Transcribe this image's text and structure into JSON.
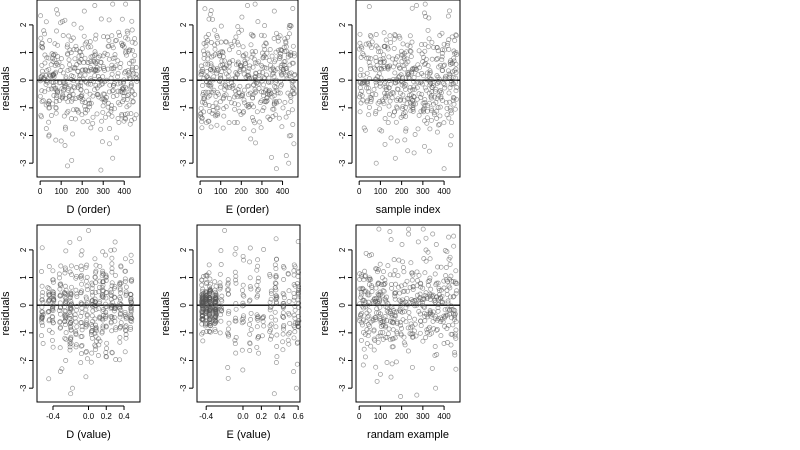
{
  "chart_data": [
    {
      "type": "scatter",
      "xlabel": "D (order)",
      "ylabel": "residuals",
      "xlim": [
        -15,
        475
      ],
      "ylim": [
        -3.5,
        2.9
      ],
      "xticks": [
        0,
        100,
        200,
        300,
        400
      ],
      "yticks": [
        -3,
        -2,
        -1,
        0,
        1,
        2
      ],
      "hline": 0,
      "grid": false,
      "n_points": 460,
      "seed": 11,
      "x_distribution": "order",
      "shape": "uniform",
      "points": [
        {
          "x": 130,
          "y": -3.1
        },
        {
          "x": 150,
          "y": -2.9
        },
        {
          "x": 260,
          "y": 2.7
        },
        {
          "x": 210,
          "y": 2.5
        },
        {
          "x": 100,
          "y": -2.2
        },
        {
          "x": 330,
          "y": -2.3
        },
        {
          "x": 395,
          "y": 1.3
        },
        {
          "x": 400,
          "y": 1.2
        },
        {
          "x": 120,
          "y": -1.7
        }
      ]
    },
    {
      "type": "scatter",
      "xlabel": "E (order)",
      "ylabel": "residuals",
      "xlim": [
        -15,
        475
      ],
      "ylim": [
        -3.5,
        2.9
      ],
      "xticks": [
        0,
        100,
        200,
        300,
        400
      ],
      "yticks": [
        -3,
        -2,
        -1,
        0,
        1,
        2
      ],
      "hline": 0,
      "grid": false,
      "n_points": 460,
      "seed": 23,
      "x_distribution": "order",
      "shape": "uniform",
      "points": [
        {
          "x": 230,
          "y": 2.7
        },
        {
          "x": 60,
          "y": 2.2
        },
        {
          "x": 360,
          "y": 2.5
        },
        {
          "x": 370,
          "y": -3.2
        },
        {
          "x": 430,
          "y": -3.0
        },
        {
          "x": 455,
          "y": -2.3
        },
        {
          "x": 440,
          "y": -2.0
        },
        {
          "x": 450,
          "y": -1.6
        }
      ]
    },
    {
      "type": "scatter",
      "xlabel": "sample index",
      "ylabel": "residuals",
      "xlim": [
        -15,
        475
      ],
      "ylim": [
        -3.5,
        2.9
      ],
      "xticks": [
        0,
        100,
        200,
        300,
        400
      ],
      "yticks": [
        -3,
        -2,
        -1,
        0,
        1,
        2
      ],
      "hline": 0,
      "grid": false,
      "n_points": 460,
      "seed": 37,
      "x_distribution": "order",
      "shape": "uniform",
      "points": [
        {
          "x": 80,
          "y": -3.0
        },
        {
          "x": 400,
          "y": -3.2
        },
        {
          "x": 270,
          "y": 2.7
        },
        {
          "x": 250,
          "y": 2.6
        },
        {
          "x": 180,
          "y": -2.2
        },
        {
          "x": 310,
          "y": 1.3
        },
        {
          "x": 400,
          "y": 1.3
        }
      ]
    },
    {
      "type": "scatter",
      "xlabel": "D (value)",
      "ylabel": "residuals",
      "xlim": [
        -0.58,
        0.58
      ],
      "ylim": [
        -3.5,
        2.9
      ],
      "xticks": [
        -0.4,
        0.0,
        0.2,
        0.4
      ],
      "xtick_labels": [
        "-0.4",
        "0.0",
        "0.2",
        "0.4"
      ],
      "yticks": [
        -3,
        -2,
        -1,
        0,
        1,
        2
      ],
      "hline": 0,
      "grid": false,
      "n_points": 460,
      "seed": 41,
      "x_distribution": "columns",
      "x_columns": [
        -0.52,
        -0.45,
        -0.4,
        -0.32,
        -0.26,
        -0.2,
        -0.14,
        -0.08,
        -0.02,
        0.04,
        0.08,
        0.12,
        0.16,
        0.2,
        0.26,
        0.3,
        0.36,
        0.42,
        0.48
      ],
      "shape": "diamond",
      "points": [
        {
          "x": -0.2,
          "y": -3.2
        },
        {
          "x": -0.18,
          "y": -3.0
        },
        {
          "x": 0.0,
          "y": 2.7
        },
        {
          "x": -0.1,
          "y": 2.4
        },
        {
          "x": -0.3,
          "y": -2.3
        },
        {
          "x": 0.08,
          "y": -1.5
        }
      ]
    },
    {
      "type": "scatter",
      "xlabel": "E (value)",
      "ylabel": "residuals",
      "xlim": [
        -0.5,
        0.62
      ],
      "ylim": [
        -3.5,
        2.9
      ],
      "xticks": [
        -0.4,
        0.0,
        0.2,
        0.4,
        0.6
      ],
      "xtick_labels": [
        "-0.4",
        "0.0",
        "0.2",
        "0.4",
        "0.6"
      ],
      "yticks": [
        -3,
        -2,
        -1,
        0,
        1,
        2
      ],
      "hline": 0,
      "grid": false,
      "n_points": 460,
      "seed": 53,
      "x_distribution": "columns",
      "x_columns": [
        -0.44,
        -0.4,
        -0.36,
        -0.3,
        -0.24,
        -0.16,
        -0.08,
        0.0,
        0.08,
        0.16,
        0.22,
        0.3,
        0.36,
        0.44,
        0.5,
        0.56,
        0.6
      ],
      "shape": "dense_left",
      "points": [
        {
          "x": -0.2,
          "y": 2.7
        },
        {
          "x": 0.34,
          "y": -3.2
        },
        {
          "x": 0.58,
          "y": -3.0
        },
        {
          "x": 0.55,
          "y": -2.4
        },
        {
          "x": 0.6,
          "y": 2.3
        },
        {
          "x": 0.36,
          "y": 2.4
        }
      ]
    },
    {
      "type": "scatter",
      "xlabel": "randam example",
      "ylabel": "residuals",
      "xlim": [
        -15,
        475
      ],
      "ylim": [
        -3.5,
        2.9
      ],
      "xticks": [
        0,
        100,
        200,
        300,
        400
      ],
      "yticks": [
        -3,
        -2,
        -1,
        0,
        1,
        2
      ],
      "hline": 0,
      "grid": false,
      "n_points": 460,
      "seed": 67,
      "x_distribution": "order",
      "shape": "uniform",
      "points": [
        {
          "x": 195,
          "y": -3.3
        },
        {
          "x": 360,
          "y": -3.0
        },
        {
          "x": 445,
          "y": 2.5
        },
        {
          "x": 150,
          "y": -2.6
        },
        {
          "x": 100,
          "y": -2.5
        }
      ]
    }
  ]
}
